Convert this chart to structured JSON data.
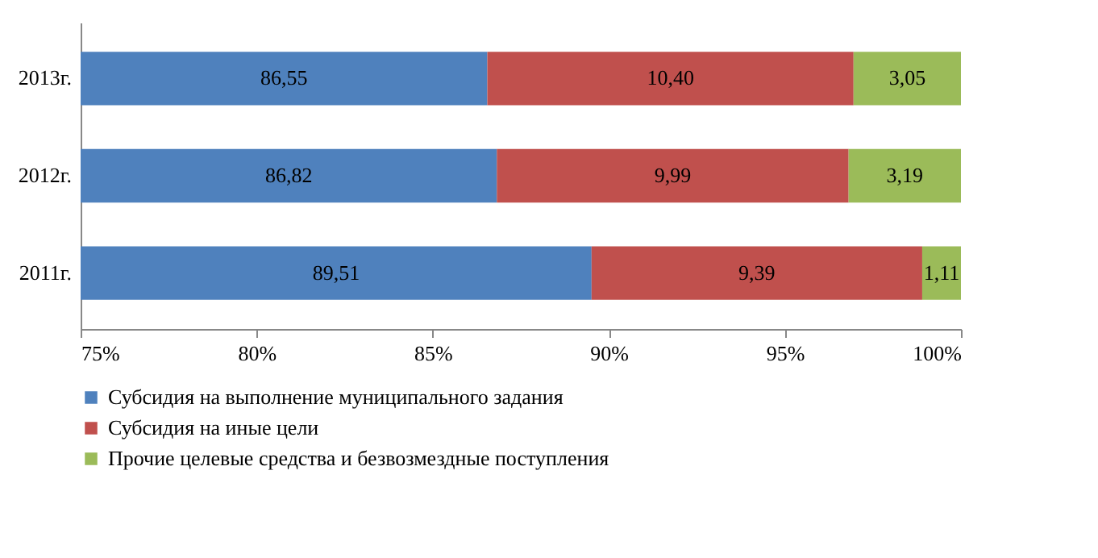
{
  "chart_data": {
    "type": "bar",
    "orientation": "horizontal",
    "stacked": true,
    "categories": [
      "2013г.",
      "2012г.",
      "2011г."
    ],
    "series": [
      {
        "name": "Субсидия на выполнение муниципального задания",
        "color": "#4f81bd",
        "values": [
          86.55,
          86.82,
          89.51
        ],
        "value_labels": [
          "86,55",
          "86,82",
          "89,51"
        ]
      },
      {
        "name": "Субсидия на иные цели",
        "color": "#c0504d",
        "values": [
          10.4,
          9.99,
          9.39
        ],
        "base": [
          86.55,
          86.82,
          89.51
        ],
        "value_labels": [
          "10,40",
          "9,99",
          "9,39"
        ]
      },
      {
        "name": "Прочие целевые средства и безвозмездные поступления",
        "color": "#9bbb59",
        "values": [
          3.05,
          3.19,
          1.11
        ],
        "base": [
          96.95,
          96.81,
          98.9
        ],
        "value_labels": [
          "3,05",
          "3,19",
          "1,11"
        ]
      }
    ],
    "xlim": [
      75,
      100
    ],
    "xticks": [
      {
        "value": 75,
        "label": "75%"
      },
      {
        "value": 80,
        "label": "80%"
      },
      {
        "value": 85,
        "label": "85%"
      },
      {
        "value": 90,
        "label": "90%"
      },
      {
        "value": 95,
        "label": "95%"
      },
      {
        "value": 100,
        "label": "100%"
      }
    ],
    "legend": "bottom",
    "grid": false
  }
}
